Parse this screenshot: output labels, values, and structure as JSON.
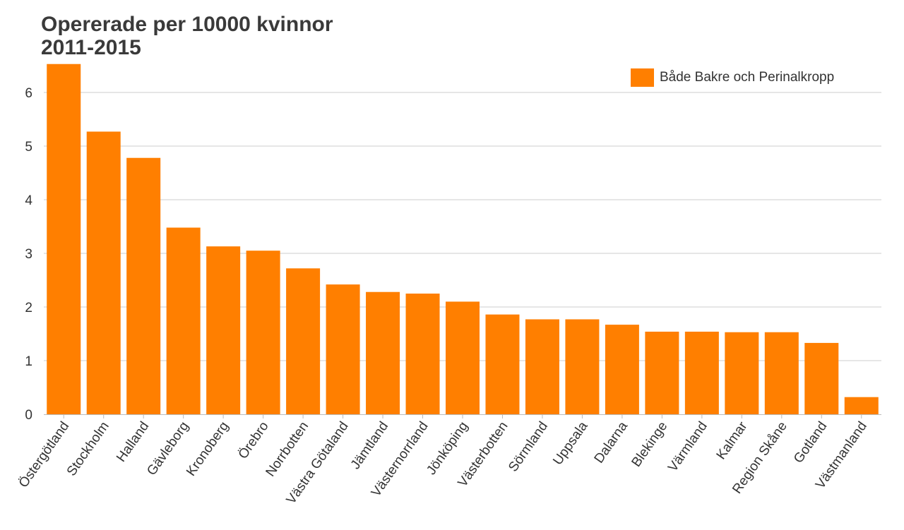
{
  "chart_data": {
    "type": "bar",
    "title_lines": [
      "Opererade per 10000 kvinnor",
      "2011-2015"
    ],
    "xlabel": "",
    "ylabel": "",
    "ylim": [
      0,
      6.5
    ],
    "yticks": [
      "0",
      "1",
      "2",
      "3",
      "4",
      "5",
      "6"
    ],
    "grid": true,
    "legend_position": "top-right",
    "bar_color": "#FF7F00",
    "categories": [
      "Östergötland",
      "Stockholm",
      "Halland",
      "Gävleborg",
      "Kronoberg",
      "Örebro",
      "Norrbotten",
      "Västra Götaland",
      "Jämtland",
      "Västernorrland",
      "Jönköping",
      "Västerbotten",
      "Sörmland",
      "Uppsala",
      "Dalarna",
      "Blekinge",
      "Värmland",
      "Kalmar",
      "Region Skåne",
      "Gotland",
      "Västmanland"
    ],
    "series": [
      {
        "name": "Både Bakre och Perinalkropp",
        "values": [
          6.53,
          5.27,
          4.78,
          3.48,
          3.13,
          3.05,
          2.72,
          2.42,
          2.28,
          2.25,
          2.1,
          1.86,
          1.77,
          1.77,
          1.67,
          1.54,
          1.54,
          1.53,
          1.53,
          1.33,
          0.32
        ]
      }
    ]
  }
}
